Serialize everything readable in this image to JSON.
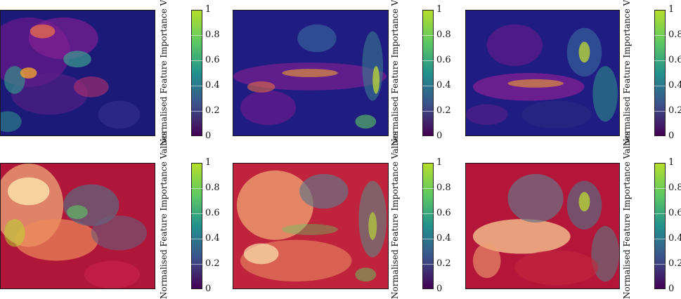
{
  "colorbar": {
    "label": "Normalised Feature Importance Values",
    "ticks": [
      "0",
      "0.2",
      "0.4",
      "0.6",
      "0.8",
      "1"
    ],
    "range": [
      0,
      1
    ],
    "colormap": [
      "#440154",
      "#3b528b",
      "#21918c",
      "#5ec962",
      "#b5de2b"
    ]
  },
  "rows": [
    {
      "style": "plasma",
      "background": "#1a1870",
      "panels": 3
    },
    {
      "style": "heat",
      "background": "#b3163a",
      "panels": 3
    }
  ]
}
